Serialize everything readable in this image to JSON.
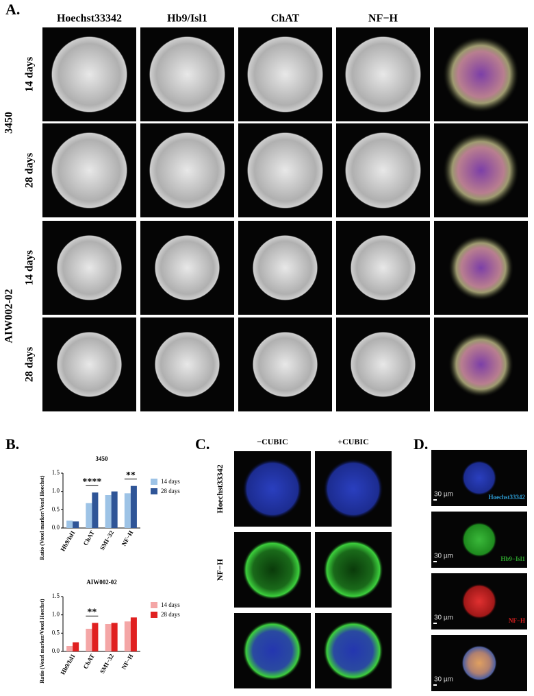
{
  "panel_a": {
    "label": "A.",
    "columns": [
      "Hoechst33342",
      "Hb9/Isl1",
      "ChAT",
      "NF−H"
    ],
    "groups": [
      {
        "name": "3450",
        "rows": [
          "14 days",
          "28 days"
        ]
      },
      {
        "name": "AIW002-02",
        "rows": [
          "14 days",
          "28 days"
        ]
      }
    ]
  },
  "panel_b": {
    "label": "B."
  },
  "chart_data": [
    {
      "type": "bar",
      "title": "3450",
      "y_label": "Ratio (Voxel marker/Voxel Hoechst)",
      "categories": [
        "Hb9/Isl1",
        "ChAT",
        "SMI−32",
        "NF−H"
      ],
      "series": [
        {
          "name": "14 days",
          "color": "#9dc3e6",
          "values": [
            0.2,
            0.68,
            0.9,
            0.95
          ]
        },
        {
          "name": "28 days",
          "color": "#2f5597",
          "values": [
            0.18,
            0.97,
            1.0,
            1.15
          ]
        }
      ],
      "ylim": [
        0,
        1.5
      ],
      "yticks": [
        {
          "value": 0,
          "label": "0.0"
        },
        0.5,
        {
          "value": 1,
          "label": "1.0"
        },
        1.5
      ],
      "annotations": [
        {
          "text": "****",
          "category": 1
        },
        {
          "text": "**",
          "category": 3
        }
      ]
    },
    {
      "type": "bar",
      "title": "AIW002-02",
      "y_label": "Ratio (Voxel marker/Voxel Hoechst)",
      "categories": [
        "Hb9/Isl1",
        "ChAT",
        "SMI−32",
        "NF−H"
      ],
      "series": [
        {
          "name": "14 days",
          "color": "#f4a6a6",
          "values": [
            0.15,
            0.62,
            0.75,
            0.82
          ]
        },
        {
          "name": "28 days",
          "color": "#e02020",
          "values": [
            0.25,
            0.78,
            0.78,
            0.93
          ]
        }
      ],
      "ylim": [
        0,
        1.5
      ],
      "yticks": [
        {
          "value": 0,
          "label": "0.0"
        },
        0.5,
        {
          "value": 1,
          "label": "1.0"
        },
        1.5
      ],
      "annotations": [
        {
          "text": "**",
          "category": 1
        }
      ]
    }
  ],
  "panel_c": {
    "label": "C.",
    "columns": [
      "−CUBIC",
      "+CUBIC"
    ],
    "rows": [
      "Hoechst33342",
      "NF−H"
    ]
  },
  "panel_d": {
    "label": "D.",
    "scale_bar": "30 µm",
    "channels": [
      "Hoechst33342",
      "Hb9−Isl1",
      "NF−H"
    ],
    "channel_colors": [
      "#2e9fd8",
      "#2ca02c",
      "#e02020"
    ]
  }
}
